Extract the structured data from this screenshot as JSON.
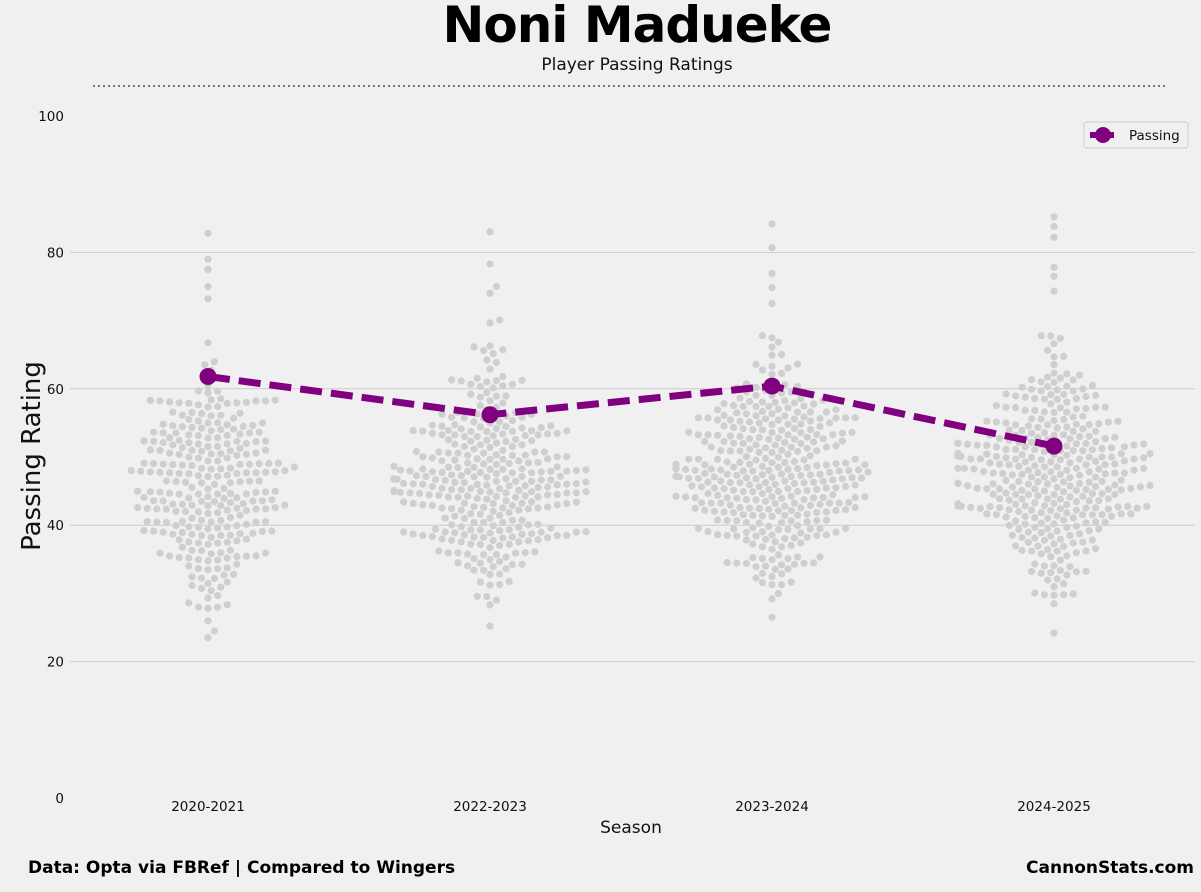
{
  "title": "Noni Madueke",
  "subtitle": "Player Passing Ratings",
  "footer": {
    "source": "Data: Opta via FBRef | Compared to Wingers",
    "brand": "CannonStats.com"
  },
  "colors": {
    "background": "#f0f0f0",
    "player_line": "#800080",
    "swarm_points": "#cfcfcf",
    "grid": "#cbcbcb",
    "divider": "#777777"
  },
  "chart_data": {
    "type": "line",
    "xlabel": "Season",
    "ylabel": "Passing Rating",
    "categories": [
      "2020-2021",
      "2022-2023",
      "2023-2024",
      "2024-2025"
    ],
    "yticks": [
      0,
      20,
      40,
      60,
      80,
      100
    ],
    "ylim": [
      0,
      100
    ],
    "grid": true,
    "legend_position": "top-right",
    "series": [
      {
        "name": "Passing",
        "values": [
          61.8,
          56.2,
          60.4,
          51.6
        ],
        "line_style": "dashed",
        "marker": "circle"
      }
    ],
    "background_swarm": [
      {
        "season": "2020-2021",
        "min": 23.5,
        "max": 82.8,
        "count": 280,
        "center": 45.5,
        "outliers": [
          82.8,
          79,
          77.5,
          75,
          73.2,
          23.5,
          24.5,
          26,
          27.8
        ]
      },
      {
        "season": "2022-2023",
        "min": 25.2,
        "max": 83,
        "count": 330,
        "center": 46.5,
        "outliers": [
          83,
          78.3,
          75,
          74,
          25.2,
          28.3,
          29
        ]
      },
      {
        "season": "2023-2024",
        "min": 26.5,
        "max": 84.2,
        "count": 360,
        "center": 47,
        "outliers": [
          84.2,
          80.7,
          76.9,
          72.5,
          26.5,
          29.2,
          30
        ]
      },
      {
        "season": "2024-2025",
        "min": 24.2,
        "max": 85.2,
        "count": 360,
        "center": 47.5,
        "outliers": [
          85.2,
          83.8,
          82.2,
          77.8,
          76.5,
          24.2,
          29.8,
          31
        ]
      }
    ]
  }
}
